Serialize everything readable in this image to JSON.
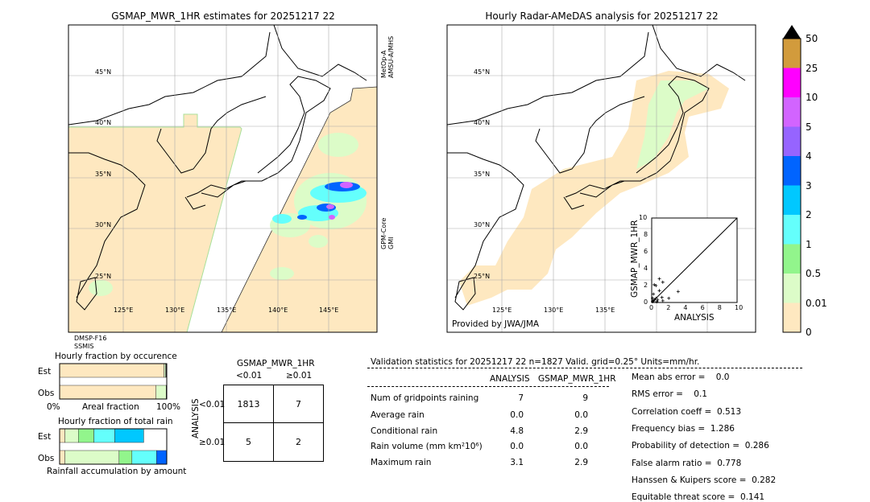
{
  "left_map": {
    "title": "GSMAP_MWR_1HR estimates for 20251217 22",
    "sensor_top_right": [
      "MetOp-A",
      "AMSU-A/MHS"
    ],
    "sensor_right": [
      "GPM-Core",
      "GMI"
    ],
    "sensor_bottom_left": [
      "DMSP-F16",
      "SSMIS"
    ]
  },
  "right_map": {
    "title": "Hourly Radar-AMeDAS analysis for 20251217 22",
    "credit": "Provided by JWA/JMA"
  },
  "lat_labels": [
    "45°N",
    "40°N",
    "35°N",
    "30°N",
    "25°N"
  ],
  "lon_labels": [
    "125°E",
    "130°E",
    "135°E",
    "140°E",
    "145°E"
  ],
  "lon_labels_right": [
    "125°E",
    "130°E",
    "135°E"
  ],
  "colorbar": {
    "labels": [
      "0",
      "0.01",
      "0.5",
      "1",
      "2",
      "3",
      "4",
      "5",
      "10",
      "25",
      "50"
    ],
    "colors": [
      "#fee8c0",
      "#dcfcc8",
      "#92f58c",
      "#64fffc",
      "#00c8ff",
      "#0064ff",
      "#9664ff",
      "#d264ff",
      "#ff00ff",
      "#d29b3c"
    ]
  },
  "chart_data": [
    {
      "type": "scatter",
      "xlabel": "ANALYSIS",
      "ylabel": "GSMAP_MWR_1HR",
      "xlim": [
        0,
        10
      ],
      "ylim": [
        0,
        10
      ],
      "ticks": [
        "0",
        "2",
        "4",
        "6",
        "8",
        "10"
      ],
      "points": [
        [
          0.1,
          0.1
        ],
        [
          0.2,
          0.2
        ],
        [
          0.1,
          0.5
        ],
        [
          0.3,
          0.3
        ],
        [
          0.2,
          1.0
        ],
        [
          0.5,
          0.5
        ],
        [
          0.3,
          2.1
        ],
        [
          0.5,
          2.0
        ],
        [
          0.9,
          2.8
        ],
        [
          1.3,
          2.4
        ],
        [
          0.9,
          1.4
        ],
        [
          1.2,
          0.6
        ],
        [
          1.3,
          0.2
        ],
        [
          2.0,
          0.5
        ],
        [
          3.1,
          1.3
        ],
        [
          0.6,
          0.1
        ],
        [
          0.7,
          0.3
        ]
      ]
    },
    {
      "type": "bar",
      "title": "Hourly fraction by occurence",
      "xlabel": "Areal fraction",
      "rows": [
        "Est",
        "Obs"
      ],
      "x_ticks": [
        "0%",
        "100%"
      ],
      "Est": [
        {
          "color": "#fee8c0",
          "value": 0.975
        },
        {
          "color": "#dcfcc8",
          "value": 0.015
        },
        {
          "color": "#000",
          "value": 0.005
        }
      ],
      "Obs": [
        {
          "color": "#fee8c0",
          "value": 0.9
        },
        {
          "color": "#dcfcc8",
          "value": 0.095
        },
        {
          "color": "#000",
          "value": 0.005
        }
      ]
    },
    {
      "type": "bar",
      "title": "Hourly fraction of total rain",
      "xlabel": "Rainfall accumulation by amount",
      "rows": [
        "Est",
        "Obs"
      ],
      "Est": [
        {
          "color": "#fee8c0",
          "value": 0.05
        },
        {
          "color": "#dcfcc8",
          "value": 0.125
        },
        {
          "color": "#92f58c",
          "value": 0.145
        },
        {
          "color": "#64fffc",
          "value": 0.195
        },
        {
          "color": "#00c8ff",
          "value": 0.27
        }
      ],
      "Obs": [
        {
          "color": "#fee8c0",
          "value": 0.05
        },
        {
          "color": "#dcfcc8",
          "value": 0.505
        },
        {
          "color": "#92f58c",
          "value": 0.12
        },
        {
          "color": "#64fffc",
          "value": 0.23
        },
        {
          "color": "#0064ff",
          "value": 0.095
        }
      ]
    }
  ],
  "contingency": {
    "title": "GSMAP_MWR_1HR",
    "col_labels": [
      "<0.01",
      "≥0.01"
    ],
    "row_axis": "ANALYSIS",
    "row_labels": [
      "<0.01",
      "≥0.01"
    ],
    "cells": [
      [
        "1813",
        "7"
      ],
      [
        "5",
        "2"
      ]
    ]
  },
  "stats": {
    "header": "Validation statistics for 20251217 22  n=1827 Valid. grid=0.25° Units=mm/hr.",
    "columns": [
      "ANALYSIS",
      "GSMAP_MWR_1HR"
    ],
    "rows": [
      {
        "label": "Num of gridpoints raining",
        "a": "7",
        "g": "9"
      },
      {
        "label": "Average rain",
        "a": "0.0",
        "g": "0.0"
      },
      {
        "label": "Conditional rain",
        "a": "4.8",
        "g": "2.9"
      },
      {
        "label": "Rain volume (mm km²10⁶)",
        "a": "0.0",
        "g": "0.0"
      },
      {
        "label": "Maximum rain",
        "a": "3.1",
        "g": "2.9"
      }
    ],
    "scores": [
      "Mean abs error =    0.0",
      "RMS error =    0.1",
      "Correlation coeff =  0.513",
      "Frequency bias =  1.286",
      "Probability of detection =  0.286",
      "False alarm ratio =  0.778",
      "Hanssen & Kuipers score =  0.282",
      "Equitable threat score =  0.141"
    ]
  }
}
